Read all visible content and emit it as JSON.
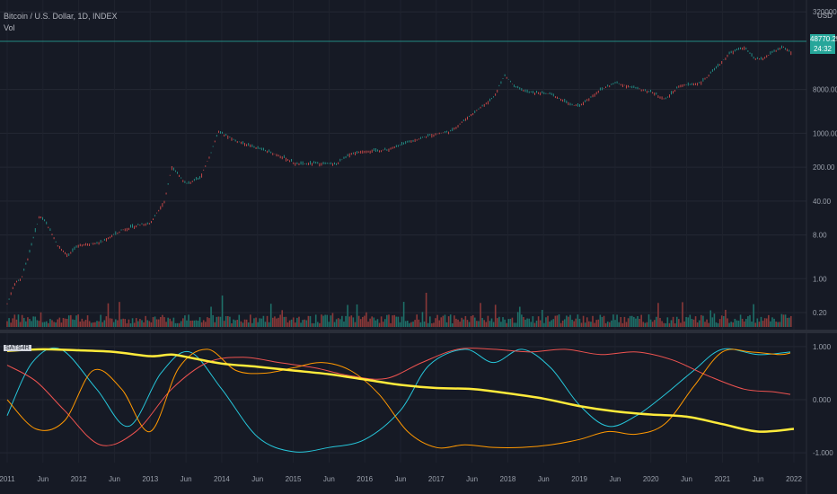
{
  "header": {
    "symbol": "Bitcoin / U.S. Dollar, 1D, INDEX",
    "vol_label": "Vol",
    "currency": "USD",
    "indicator_label": "SATS4R"
  },
  "price_tag": {
    "price": "48770.25",
    "sub": "24:32",
    "color": "#26a69a"
  },
  "chart_data": [
    {
      "type": "candlestick",
      "title": "Bitcoin / U.S. Dollar, 1D, INDEX",
      "y_scale": "log",
      "y_ticks": [
        "320000.00",
        "8000.00",
        "1000.00",
        "200.00",
        "40.00",
        "8.00",
        "1.00",
        "0.20"
      ],
      "x_ticks": [
        "2011",
        "Jun",
        "2012",
        "Jun",
        "2013",
        "Jun",
        "2014",
        "Jun",
        "2015",
        "Jun",
        "2016",
        "Jun",
        "2017",
        "Jun",
        "2018",
        "Jun",
        "2019",
        "Jun",
        "2020",
        "Jun",
        "2021",
        "Jun",
        "2022"
      ],
      "price_path": {
        "x": [
          2011.0,
          2011.1,
          2011.2,
          2011.3,
          2011.45,
          2011.55,
          2011.7,
          2011.85,
          2012.0,
          2012.3,
          2012.6,
          2012.85,
          2013.0,
          2013.2,
          2013.3,
          2013.5,
          2013.7,
          2013.85,
          2013.95,
          2014.2,
          2014.5,
          2014.8,
          2015.05,
          2015.3,
          2015.6,
          2015.8,
          2016.0,
          2016.3,
          2016.6,
          2016.9,
          2017.2,
          2017.5,
          2017.8,
          2017.96,
          2018.1,
          2018.3,
          2018.6,
          2018.9,
          2019.0,
          2019.3,
          2019.5,
          2019.8,
          2020.0,
          2020.2,
          2020.4,
          2020.7,
          2020.95,
          2021.1,
          2021.3,
          2021.45,
          2021.55,
          2021.7,
          2021.85,
          2021.96
        ],
        "y": [
          0.3,
          0.8,
          1.0,
          3.0,
          20.0,
          14.0,
          5.0,
          3.0,
          5.0,
          5.5,
          10.0,
          13.0,
          14.0,
          40.0,
          200.0,
          90.0,
          120.0,
          400.0,
          1100.0,
          700.0,
          500.0,
          350.0,
          230.0,
          240.0,
          230.0,
          380.0,
          430.0,
          450.0,
          650.0,
          900.0,
          1100.0,
          2500.0,
          5500.0,
          16000.0,
          9000.0,
          7000.0,
          6500.0,
          3800.0,
          3700.0,
          8000.0,
          11000.0,
          8500.0,
          7200.0,
          5000.0,
          9500.0,
          11000.0,
          25000.0,
          45000.0,
          60000.0,
          35000.0,
          33000.0,
          47000.0,
          60000.0,
          47000.0
        ]
      }
    },
    {
      "type": "line",
      "title": "SATS4R",
      "y_ticks": [
        "1.000",
        "0.000",
        "-1.000"
      ],
      "ylim": [
        -1.1,
        1.1
      ],
      "series": [
        {
          "color": "#ffeb3b",
          "width": 2.5,
          "x": [
            2011.0,
            2011.5,
            2012.0,
            2012.5,
            2013.0,
            2013.3,
            2013.6,
            2014.0,
            2014.5,
            2015.0,
            2015.5,
            2016.0,
            2016.5,
            2017.0,
            2017.5,
            2018.0,
            2018.5,
            2019.0,
            2019.5,
            2020.0,
            2020.5,
            2021.0,
            2021.5,
            2022.0
          ],
          "y": [
            0.92,
            0.95,
            0.93,
            0.9,
            0.82,
            0.85,
            0.78,
            0.68,
            0.62,
            0.55,
            0.48,
            0.38,
            0.28,
            0.22,
            0.2,
            0.12,
            0.02,
            -0.12,
            -0.22,
            -0.28,
            -0.32,
            -0.46,
            -0.6,
            -0.55
          ]
        },
        {
          "color": "#26c6da",
          "width": 1,
          "x": [
            2011.0,
            2011.35,
            2011.75,
            2012.25,
            2012.7,
            2013.15,
            2013.55,
            2014.0,
            2014.5,
            2015.0,
            2015.5,
            2016.0,
            2016.5,
            2016.9,
            2017.4,
            2017.8,
            2018.2,
            2018.6,
            2019.0,
            2019.4,
            2019.8,
            2020.2,
            2020.6,
            2021.0,
            2021.5,
            2021.95
          ],
          "y": [
            -0.3,
            0.7,
            0.95,
            0.2,
            -0.5,
            0.5,
            0.9,
            0.2,
            -0.7,
            -0.98,
            -0.9,
            -0.75,
            -0.2,
            0.65,
            0.95,
            0.7,
            0.95,
            0.6,
            -0.1,
            -0.5,
            -0.3,
            0.1,
            0.55,
            0.95,
            0.85,
            0.9
          ]
        },
        {
          "color": "#ef5350",
          "width": 1,
          "x": [
            2011.0,
            2011.4,
            2011.8,
            2012.3,
            2012.8,
            2013.3,
            2013.8,
            2014.3,
            2014.8,
            2015.3,
            2015.8,
            2016.3,
            2016.8,
            2017.3,
            2017.8,
            2018.3,
            2018.8,
            2019.3,
            2019.8,
            2020.3,
            2020.8,
            2021.3,
            2021.7,
            2021.95
          ],
          "y": [
            0.65,
            0.35,
            -0.2,
            -0.85,
            -0.6,
            0.2,
            0.7,
            0.8,
            0.7,
            0.6,
            0.45,
            0.4,
            0.7,
            0.95,
            0.95,
            0.9,
            0.95,
            0.85,
            0.9,
            0.75,
            0.45,
            0.2,
            0.15,
            0.1
          ]
        },
        {
          "color": "#ff9800",
          "width": 1,
          "x": [
            2011.0,
            2011.4,
            2011.8,
            2012.2,
            2012.6,
            2013.0,
            2013.4,
            2013.8,
            2014.2,
            2014.6,
            2015.0,
            2015.4,
            2015.8,
            2016.2,
            2016.6,
            2017.0,
            2017.4,
            2017.8,
            2018.2,
            2018.6,
            2019.0,
            2019.4,
            2019.8,
            2020.2,
            2020.6,
            2021.0,
            2021.4,
            2021.8,
            2021.95
          ],
          "y": [
            0.0,
            -0.55,
            -0.4,
            0.55,
            0.2,
            -0.6,
            0.6,
            0.95,
            0.55,
            0.5,
            0.6,
            0.7,
            0.55,
            0.1,
            -0.6,
            -0.9,
            -0.85,
            -0.9,
            -0.9,
            -0.85,
            -0.75,
            -0.6,
            -0.65,
            -0.45,
            0.25,
            0.9,
            0.9,
            0.85,
            0.88
          ]
        }
      ]
    }
  ]
}
